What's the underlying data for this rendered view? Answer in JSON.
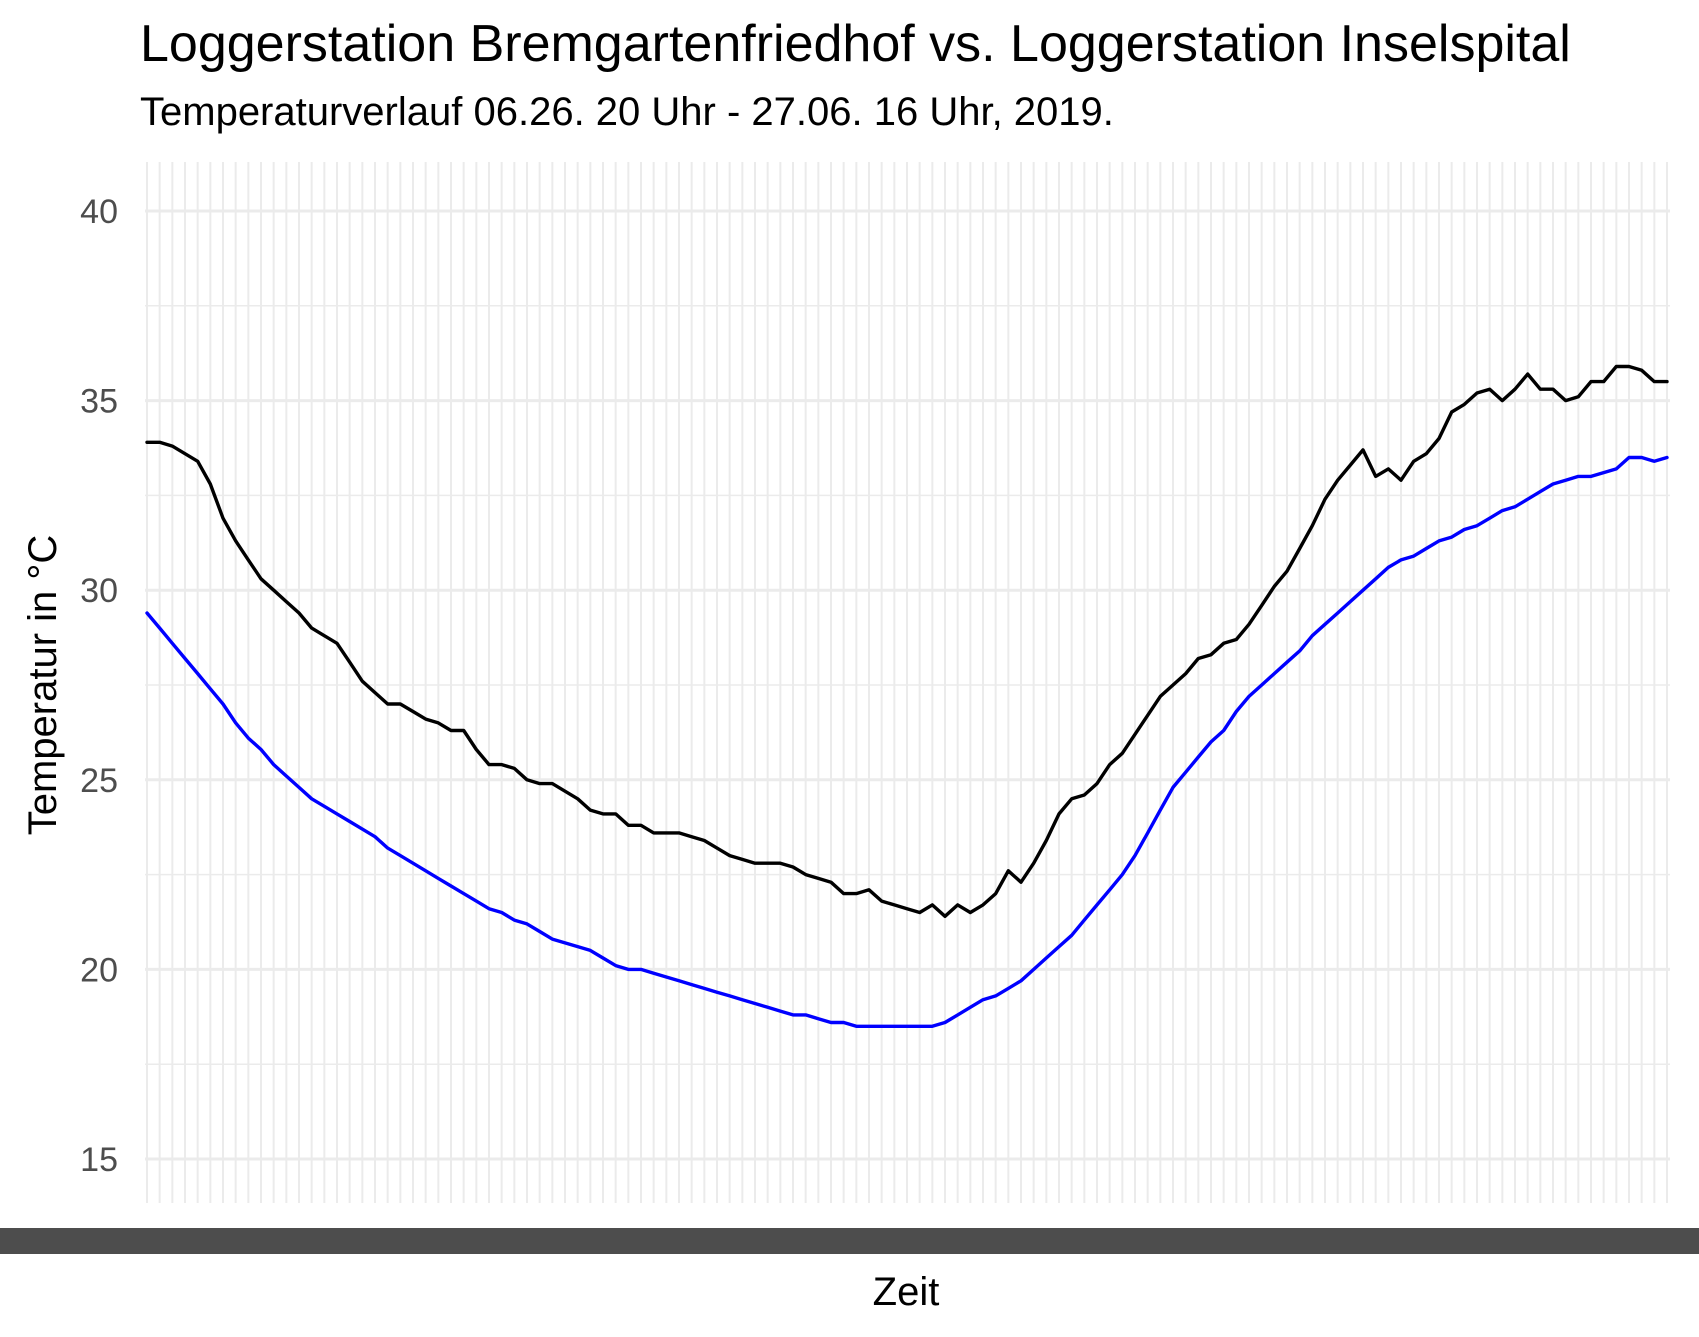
{
  "chart_data": {
    "type": "line",
    "title": "Loggerstation Bremgartenfriedhof vs. Loggerstation Inselspital",
    "subtitle": "Temperaturverlauf 06.26. 20 Uhr - 27.06. 16 Uhr, 2019.",
    "xlabel": "Zeit",
    "ylabel": "Temperatur in °C",
    "ylim": [
      14,
      41
    ],
    "yticks": [
      15,
      20,
      25,
      30,
      35,
      40
    ],
    "grid": true,
    "legend": "none",
    "x_tick_labels_note": "x tick labels are illegible overlapping text",
    "series": [
      {
        "color": "#000000",
        "values": [
          33.9,
          33.9,
          33.8,
          33.6,
          33.4,
          32.8,
          31.9,
          31.3,
          30.8,
          30.3,
          30.0,
          29.7,
          29.4,
          29.0,
          28.8,
          28.6,
          28.1,
          27.6,
          27.3,
          27.0,
          27.0,
          26.8,
          26.6,
          26.5,
          26.3,
          26.3,
          25.8,
          25.4,
          25.4,
          25.3,
          25.0,
          24.9,
          24.9,
          24.7,
          24.5,
          24.2,
          24.1,
          24.1,
          23.8,
          23.8,
          23.6,
          23.6,
          23.6,
          23.5,
          23.4,
          23.2,
          23.0,
          22.9,
          22.8,
          22.8,
          22.8,
          22.7,
          22.5,
          22.4,
          22.3,
          22.0,
          22.0,
          22.1,
          21.8,
          21.7,
          21.6,
          21.5,
          21.7,
          21.4,
          21.7,
          21.5,
          21.7,
          22.0,
          22.6,
          22.3,
          22.8,
          23.4,
          24.1,
          24.5,
          24.6,
          24.9,
          25.4,
          25.7,
          26.2,
          26.7,
          27.2,
          27.5,
          27.8,
          28.2,
          28.3,
          28.6,
          28.7,
          29.1,
          29.6,
          30.1,
          30.5,
          31.1,
          31.7,
          32.4,
          32.9,
          33.3,
          33.7,
          33.0,
          33.2,
          32.9,
          33.4,
          33.6,
          34.0,
          34.7,
          34.9,
          35.2,
          35.3,
          35.0,
          35.3,
          35.7,
          35.3,
          35.3,
          35.0,
          35.1,
          35.5,
          35.5,
          35.9,
          35.9,
          35.8,
          35.5,
          35.5
        ]
      },
      {
        "color": "#0000ff",
        "values": [
          29.4,
          29.0,
          28.6,
          28.2,
          27.8,
          27.4,
          27.0,
          26.5,
          26.1,
          25.8,
          25.4,
          25.1,
          24.8,
          24.5,
          24.3,
          24.1,
          23.9,
          23.7,
          23.5,
          23.2,
          23.0,
          22.8,
          22.6,
          22.4,
          22.2,
          22.0,
          21.8,
          21.6,
          21.5,
          21.3,
          21.2,
          21.0,
          20.8,
          20.7,
          20.6,
          20.5,
          20.3,
          20.1,
          20.0,
          20.0,
          19.9,
          19.8,
          19.7,
          19.6,
          19.5,
          19.4,
          19.3,
          19.2,
          19.1,
          19.0,
          18.9,
          18.8,
          18.8,
          18.7,
          18.6,
          18.6,
          18.5,
          18.5,
          18.5,
          18.5,
          18.5,
          18.5,
          18.5,
          18.6,
          18.8,
          19.0,
          19.2,
          19.3,
          19.5,
          19.7,
          20.0,
          20.3,
          20.6,
          20.9,
          21.3,
          21.7,
          22.1,
          22.5,
          23.0,
          23.6,
          24.2,
          24.8,
          25.2,
          25.6,
          26.0,
          26.3,
          26.8,
          27.2,
          27.5,
          27.8,
          28.1,
          28.4,
          28.8,
          29.1,
          29.4,
          29.7,
          30.0,
          30.3,
          30.6,
          30.8,
          30.9,
          31.1,
          31.3,
          31.4,
          31.6,
          31.7,
          31.9,
          32.1,
          32.2,
          32.4,
          32.6,
          32.8,
          32.9,
          33.0,
          33.0,
          33.1,
          33.2,
          33.5,
          33.5,
          33.4,
          33.5
        ]
      }
    ]
  }
}
